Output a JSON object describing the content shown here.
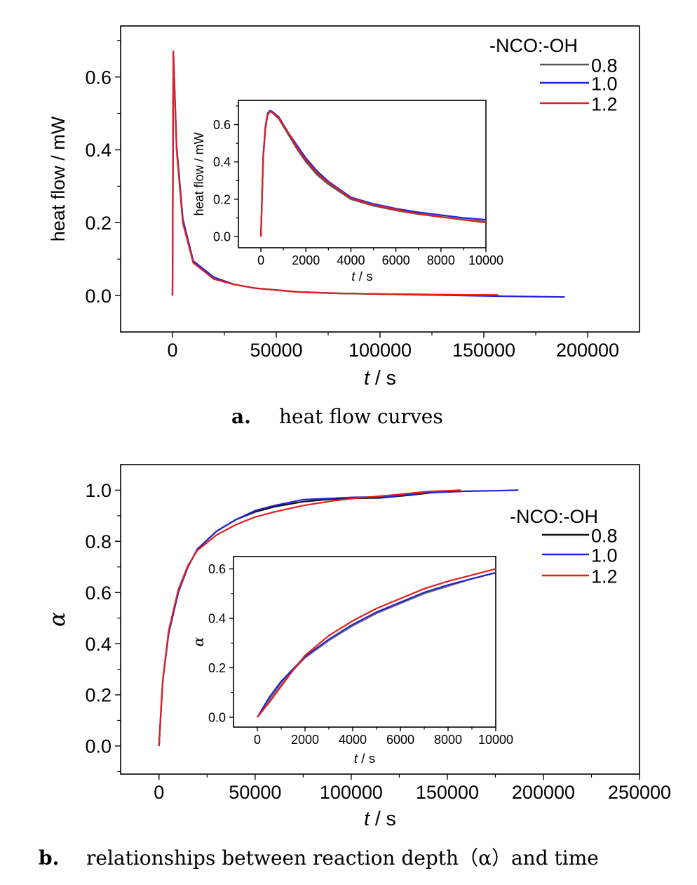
{
  "chart_data": [
    {
      "id": "a",
      "type": "line",
      "caption_label": "a.",
      "caption_text": "heat flow curves",
      "xlabel_italic": "t",
      "xlabel_unit": " / s",
      "ylabel": "heat flow / mW",
      "xlim": [
        -25000,
        225000
      ],
      "ylim": [
        -0.1,
        0.74
      ],
      "xticks": [
        0,
        50000,
        100000,
        150000,
        200000
      ],
      "yticks": [
        0.0,
        0.2,
        0.4,
        0.6
      ],
      "xtick_labels": [
        "0",
        "50000",
        "100000",
        "150000",
        "200000"
      ],
      "ytick_labels": [
        "0.0",
        "0.2",
        "0.4",
        "0.6"
      ],
      "legend_title": "-NCO:-OH",
      "legend_position": "top-right",
      "series": [
        {
          "name": "0.8",
          "color": "#555555",
          "x": [
            0,
            400,
            2000,
            5000,
            10000,
            20000,
            30000,
            40000,
            60000,
            80000,
            100000,
            120000,
            140000,
            156000
          ],
          "y": [
            0.0,
            0.67,
            0.4,
            0.2,
            0.09,
            0.045,
            0.03,
            0.02,
            0.01,
            0.006,
            0.004,
            0.003,
            0.002,
            0.0015
          ]
        },
        {
          "name": "1.0",
          "color": "#2222dd",
          "x": [
            0,
            400,
            2000,
            5000,
            10000,
            20000,
            30000,
            40000,
            60000,
            80000,
            100000,
            120000,
            140000,
            160000,
            189000
          ],
          "y": [
            0.0,
            0.67,
            0.41,
            0.21,
            0.095,
            0.05,
            0.03,
            0.02,
            0.01,
            0.006,
            0.004,
            0.002,
            0.0,
            -0.002,
            -0.004
          ]
        },
        {
          "name": "1.2",
          "color": "#e02020",
          "x": [
            0,
            400,
            2000,
            5000,
            10000,
            20000,
            30000,
            40000,
            60000,
            80000,
            100000,
            120000,
            140000,
            157000
          ],
          "y": [
            0.0,
            0.67,
            0.4,
            0.2,
            0.09,
            0.045,
            0.03,
            0.02,
            0.01,
            0.006,
            0.004,
            0.003,
            0.002,
            0.0015
          ]
        }
      ],
      "inset": {
        "xlabel_italic": "t",
        "xlabel_unit": " / s",
        "ylabel": "heat flow / mW",
        "xlim": [
          -1000,
          10000
        ],
        "ylim": [
          -0.06,
          0.73
        ],
        "xticks": [
          0,
          2000,
          4000,
          6000,
          8000,
          10000
        ],
        "yticks": [
          0.0,
          0.2,
          0.4,
          0.6
        ],
        "xtick_labels": [
          "0",
          "2000",
          "4000",
          "6000",
          "8000",
          "10000"
        ],
        "ytick_labels": [
          "0.0",
          "0.2",
          "0.4",
          "0.6"
        ],
        "series": [
          {
            "name": "0.8",
            "color": "#555555",
            "x": [
              0,
              100,
              200,
              300,
              400,
              500,
              800,
              1200,
              1600,
              2000,
              2500,
              3000,
              4000,
              5000,
              6000,
              7000,
              8000,
              9000,
              10000
            ],
            "y": [
              0.0,
              0.42,
              0.58,
              0.65,
              0.67,
              0.665,
              0.63,
              0.55,
              0.47,
              0.4,
              0.33,
              0.28,
              0.2,
              0.165,
              0.14,
              0.12,
              0.105,
              0.09,
              0.08
            ]
          },
          {
            "name": "1.0",
            "color": "#2222dd",
            "x": [
              0,
              100,
              200,
              300,
              400,
              500,
              800,
              1200,
              1600,
              2000,
              2500,
              3000,
              4000,
              5000,
              6000,
              7000,
              8000,
              9000,
              10000
            ],
            "y": [
              0.0,
              0.43,
              0.59,
              0.66,
              0.675,
              0.67,
              0.64,
              0.56,
              0.49,
              0.42,
              0.35,
              0.295,
              0.21,
              0.175,
              0.15,
              0.13,
              0.115,
              0.1,
              0.09
            ]
          },
          {
            "name": "1.2",
            "color": "#e02020",
            "x": [
              0,
              100,
              200,
              300,
              400,
              500,
              800,
              1200,
              1600,
              2000,
              2500,
              3000,
              4000,
              5000,
              6000,
              7000,
              8000,
              9000,
              10000
            ],
            "y": [
              0.0,
              0.42,
              0.58,
              0.655,
              0.67,
              0.665,
              0.635,
              0.56,
              0.48,
              0.41,
              0.34,
              0.29,
              0.205,
              0.17,
              0.145,
              0.122,
              0.105,
              0.09,
              0.075
            ]
          }
        ]
      }
    },
    {
      "id": "b",
      "type": "line",
      "caption_label": "b.",
      "caption_text": "relationships between reaction depth（α）and time",
      "xlabel_italic": "t",
      "xlabel_unit": " / s",
      "ylabel": "α",
      "xlim": [
        -20000,
        250000
      ],
      "ylim": [
        -0.11,
        1.1
      ],
      "xticks": [
        0,
        50000,
        100000,
        150000,
        200000,
        250000
      ],
      "yticks": [
        0.0,
        0.2,
        0.4,
        0.6,
        0.8,
        1.0
      ],
      "xtick_labels": [
        "0",
        "50000",
        "100000",
        "150000",
        "200000",
        "250000"
      ],
      "ytick_labels": [
        "0.0",
        "0.2",
        "0.4",
        "0.6",
        "0.8",
        "1.0"
      ],
      "legend_title": "-NCO:-OH",
      "legend_position": "top-right",
      "series": [
        {
          "name": "0.8",
          "color": "#111111",
          "x": [
            0,
            1000,
            2000,
            5000,
            10000,
            15000,
            20000,
            30000,
            40000,
            50000,
            60000,
            75000,
            90000,
            100000,
            115000,
            130000,
            145000,
            155000
          ],
          "y": [
            0.0,
            0.14,
            0.26,
            0.44,
            0.6,
            0.7,
            0.77,
            0.84,
            0.885,
            0.915,
            0.935,
            0.955,
            0.965,
            0.968,
            0.97,
            0.98,
            0.993,
            0.998
          ]
        },
        {
          "name": "1.0",
          "color": "#2222cc",
          "x": [
            0,
            1000,
            2000,
            5000,
            10000,
            15000,
            20000,
            30000,
            40000,
            50000,
            60000,
            75000,
            90000,
            100000,
            120000,
            140000,
            160000,
            175000,
            187000
          ],
          "y": [
            0.0,
            0.14,
            0.26,
            0.44,
            0.6,
            0.7,
            0.77,
            0.84,
            0.885,
            0.92,
            0.94,
            0.963,
            0.968,
            0.972,
            0.975,
            0.99,
            0.996,
            0.998,
            1.0
          ]
        },
        {
          "name": "1.2",
          "color": "#e02020",
          "x": [
            0,
            1000,
            2000,
            5000,
            10000,
            15000,
            20000,
            30000,
            40000,
            50000,
            60000,
            75000,
            90000,
            100000,
            120000,
            140000,
            157000
          ],
          "y": [
            0.0,
            0.14,
            0.26,
            0.45,
            0.61,
            0.705,
            0.765,
            0.825,
            0.865,
            0.895,
            0.915,
            0.94,
            0.958,
            0.967,
            0.98,
            0.995,
            1.0
          ]
        }
      ],
      "inset": {
        "xlabel_italic": "t",
        "xlabel_unit": " / s",
        "ylabel": "α",
        "xlim": [
          -1000,
          10000
        ],
        "ylim": [
          -0.04,
          0.65
        ],
        "xticks": [
          0,
          2000,
          4000,
          6000,
          8000,
          10000
        ],
        "yticks": [
          0.0,
          0.2,
          0.4,
          0.6
        ],
        "xtick_labels": [
          "0",
          "2000",
          "4000",
          "6000",
          "8000",
          "10000"
        ],
        "ytick_labels": [
          "0.0",
          "0.2",
          "0.4",
          "0.6"
        ],
        "series": [
          {
            "name": "0.8",
            "color": "#777777",
            "x": [
              0,
              500,
              1000,
              1500,
              2000,
              3000,
              4000,
              5000,
              6000,
              7000,
              8000,
              9000,
              10000
            ],
            "y": [
              0.0,
              0.07,
              0.135,
              0.19,
              0.24,
              0.31,
              0.37,
              0.42,
              0.46,
              0.5,
              0.53,
              0.56,
              0.585
            ]
          },
          {
            "name": "1.0",
            "color": "#2222cc",
            "x": [
              0,
              500,
              1000,
              1500,
              2000,
              3000,
              4000,
              5000,
              6000,
              7000,
              8000,
              9000,
              10000
            ],
            "y": [
              0.0,
              0.08,
              0.145,
              0.195,
              0.245,
              0.315,
              0.375,
              0.425,
              0.465,
              0.505,
              0.535,
              0.56,
              0.585
            ]
          },
          {
            "name": "1.2",
            "color": "#e02020",
            "x": [
              0,
              500,
              1000,
              1500,
              2000,
              3000,
              4000,
              5000,
              6000,
              7000,
              8000,
              9000,
              10000
            ],
            "y": [
              0.0,
              0.06,
              0.125,
              0.19,
              0.25,
              0.33,
              0.39,
              0.44,
              0.48,
              0.52,
              0.55,
              0.575,
              0.6
            ]
          }
        ]
      }
    }
  ]
}
